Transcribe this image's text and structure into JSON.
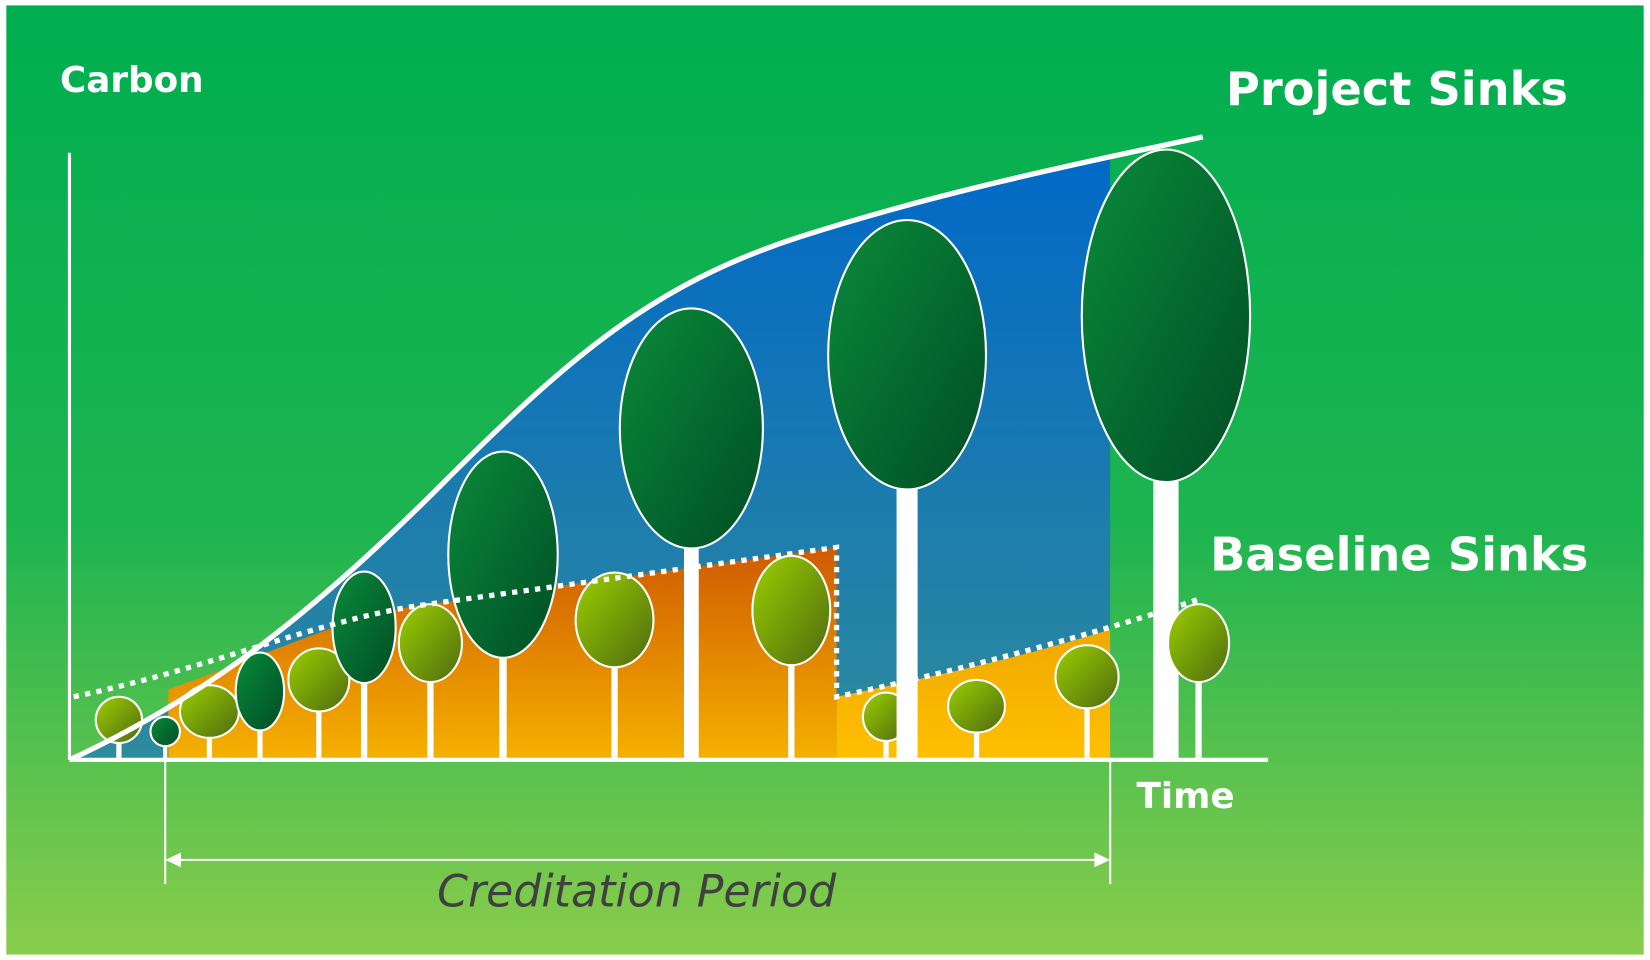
{
  "axes": {
    "y_label": "Carbon",
    "x_label": "Time"
  },
  "curves": {
    "project": "Project Sinks",
    "baseline": "Baseline Sinks"
  },
  "period": "Creditation Period"
}
